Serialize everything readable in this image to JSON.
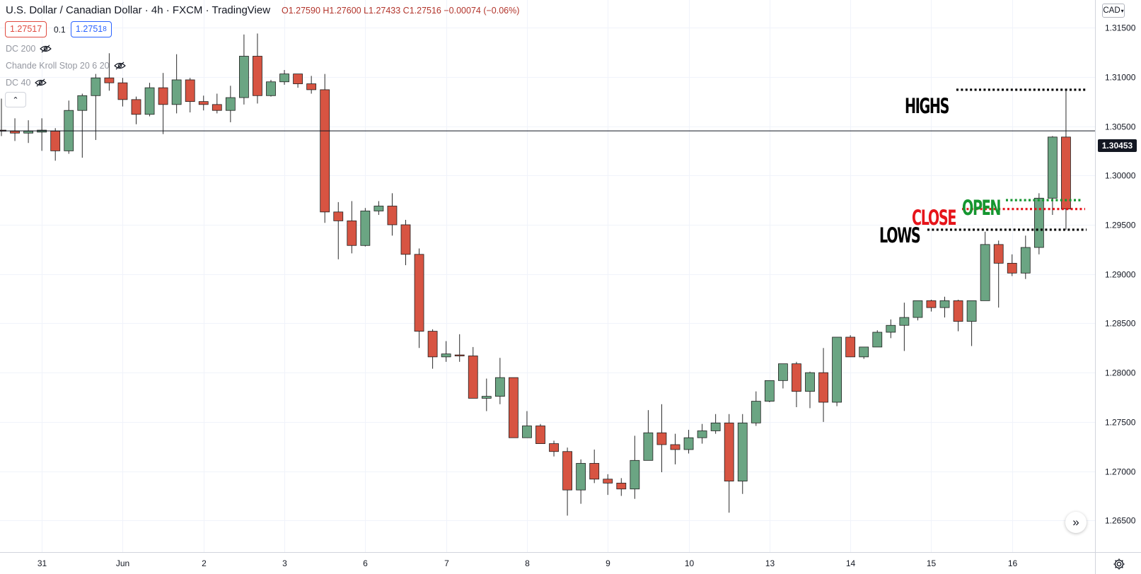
{
  "header": {
    "title": "U.S. Dollar / Canadian Dollar · 4h · FXCM · TradingView",
    "ohlc": "O1.27590 H1.27600 L1.27433 C1.27516 −0.00074 (−0.06%)"
  },
  "quote": {
    "bid": "1.27517",
    "spread": "0.1",
    "ask": "1.2751",
    "ask_pip": "8"
  },
  "indicators": [
    {
      "label": "DC 200",
      "icon": "eye-off-icon"
    },
    {
      "label": "Chande Kroll Stop 20 6 20",
      "icon": "eye-off-icon"
    },
    {
      "label": "DC 40",
      "icon": "eye-off-icon"
    }
  ],
  "toolbar": {
    "collapse_icon": "chevron-up-icon",
    "currency": "CAD",
    "currency_icon": "chevron-down-icon",
    "scroll_icon": "double-chevron-right-icon",
    "settings_icon": "gear-icon"
  },
  "price_scale": {
    "current_price_label": "1.30453",
    "labels": [
      "1.31500",
      "1.31000",
      "1.30500",
      "1.30000",
      "1.29500",
      "1.29000",
      "1.28500",
      "1.28000",
      "1.27500",
      "1.27000",
      "1.26500"
    ]
  },
  "time_scale": {
    "labels": [
      "31",
      "Jun",
      "2",
      "3",
      "6",
      "7",
      "8",
      "9",
      "10",
      "13",
      "14",
      "15",
      "16"
    ]
  },
  "annotations": {
    "highs": "HIGHS",
    "open": "OPEN",
    "close": "CLOSE",
    "lows": "LOWS",
    "levels": {
      "highs": 1.3087,
      "open": 1.2975,
      "close": 1.2966,
      "lows": 1.2945
    }
  },
  "chart_data": {
    "type": "candlestick",
    "symbol": "USDCAD",
    "timeframe": "4h",
    "ylim": [
      1.2618,
      1.3178
    ],
    "current_price": 1.30453,
    "colors": {
      "up": "#6ba583",
      "down": "#d75442",
      "wick": "#2a2a2a",
      "open_line": "#159630",
      "close_line": "#e6141a",
      "hl_line": "#000000"
    },
    "candles": [
      [
        1.3046,
        1.3078,
        1.304,
        1.3045
      ],
      [
        1.3045,
        1.3058,
        1.3035,
        1.3043
      ],
      [
        1.3043,
        1.3056,
        1.3033,
        1.3045
      ],
      [
        1.3044,
        1.3058,
        1.3025,
        1.3046
      ],
      [
        1.3045,
        1.3048,
        1.3015,
        1.3025
      ],
      [
        1.3025,
        1.3076,
        1.3022,
        1.3066
      ],
      [
        1.3066,
        1.3083,
        1.3018,
        1.3081
      ],
      [
        1.3081,
        1.3103,
        1.3036,
        1.3099
      ],
      [
        1.3099,
        1.3124,
        1.3086,
        1.3094
      ],
      [
        1.3094,
        1.3099,
        1.307,
        1.3077
      ],
      [
        1.3077,
        1.308,
        1.3052,
        1.3062
      ],
      [
        1.3062,
        1.3094,
        1.306,
        1.3089
      ],
      [
        1.3089,
        1.3104,
        1.3042,
        1.3072
      ],
      [
        1.3072,
        1.3123,
        1.3063,
        1.3097
      ],
      [
        1.3097,
        1.3099,
        1.3064,
        1.3075
      ],
      [
        1.3075,
        1.3081,
        1.3066,
        1.3072
      ],
      [
        1.3072,
        1.3083,
        1.3063,
        1.3066
      ],
      [
        1.3066,
        1.3091,
        1.3054,
        1.3079
      ],
      [
        1.3079,
        1.3143,
        1.3072,
        1.3121
      ],
      [
        1.3121,
        1.3144,
        1.3073,
        1.3081
      ],
      [
        1.3081,
        1.3097,
        1.308,
        1.3095
      ],
      [
        1.3095,
        1.3107,
        1.3092,
        1.3103
      ],
      [
        1.3103,
        1.3103,
        1.3089,
        1.3093
      ],
      [
        1.3093,
        1.3101,
        1.3083,
        1.3087
      ],
      [
        1.3087,
        1.3103,
        1.2952,
        1.2963
      ],
      [
        1.2963,
        1.2973,
        1.2915,
        1.2954
      ],
      [
        1.2954,
        1.2974,
        1.2921,
        1.2929
      ],
      [
        1.2929,
        1.2967,
        1.2928,
        1.2964
      ],
      [
        1.2964,
        1.2974,
        1.296,
        1.2969
      ],
      [
        1.2969,
        1.2982,
        1.2939,
        1.295
      ],
      [
        1.295,
        1.2955,
        1.2909,
        1.292
      ],
      [
        1.292,
        1.2926,
        1.2825,
        1.2842
      ],
      [
        1.2842,
        1.2844,
        1.2804,
        1.2816
      ],
      [
        1.2816,
        1.2832,
        1.2811,
        1.2819
      ],
      [
        1.2818,
        1.2839,
        1.2811,
        1.2817
      ],
      [
        1.2817,
        1.2826,
        1.2774,
        1.2774
      ],
      [
        1.2774,
        1.2794,
        1.2761,
        1.2776
      ],
      [
        1.2776,
        1.2815,
        1.2768,
        1.2795
      ],
      [
        1.2795,
        1.2795,
        1.2734,
        1.2734
      ],
      [
        1.2734,
        1.2761,
        1.2734,
        1.2746
      ],
      [
        1.2746,
        1.2748,
        1.2728,
        1.2728
      ],
      [
        1.2728,
        1.2731,
        1.2715,
        1.272
      ],
      [
        1.272,
        1.2724,
        1.2655,
        1.2681
      ],
      [
        1.2681,
        1.2712,
        1.2667,
        1.2708
      ],
      [
        1.2708,
        1.2722,
        1.2688,
        1.2692
      ],
      [
        1.2692,
        1.2697,
        1.2676,
        1.2688
      ],
      [
        1.2688,
        1.2693,
        1.2675,
        1.2682
      ],
      [
        1.2682,
        1.2736,
        1.2672,
        1.2711
      ],
      [
        1.2711,
        1.2762,
        1.2711,
        1.2739
      ],
      [
        1.2739,
        1.2768,
        1.2699,
        1.2727
      ],
      [
        1.2727,
        1.2738,
        1.2707,
        1.2722
      ],
      [
        1.2722,
        1.2742,
        1.2718,
        1.2734
      ],
      [
        1.2734,
        1.2748,
        1.2728,
        1.2741
      ],
      [
        1.2741,
        1.2758,
        1.2738,
        1.2749
      ],
      [
        1.2749,
        1.2758,
        1.2658,
        1.269
      ],
      [
        1.269,
        1.2758,
        1.2677,
        1.2749
      ],
      [
        1.2749,
        1.2781,
        1.2746,
        1.2771
      ],
      [
        1.2771,
        1.2791,
        1.277,
        1.2792
      ],
      [
        1.2792,
        1.2808,
        1.2784,
        1.2809
      ],
      [
        1.2809,
        1.2811,
        1.2765,
        1.2781
      ],
      [
        1.2781,
        1.2801,
        1.2764,
        1.28
      ],
      [
        1.28,
        1.2825,
        1.275,
        1.277
      ],
      [
        1.277,
        1.2836,
        1.2766,
        1.2836
      ],
      [
        1.2836,
        1.2838,
        1.2818,
        1.2816
      ],
      [
        1.2816,
        1.2826,
        1.2814,
        1.2826
      ],
      [
        1.2826,
        1.2843,
        1.2826,
        1.2841
      ],
      [
        1.2841,
        1.2854,
        1.2835,
        1.2848
      ],
      [
        1.2848,
        1.2871,
        1.2822,
        1.2856
      ],
      [
        1.2856,
        1.2871,
        1.2853,
        1.2873
      ],
      [
        1.2873,
        1.2874,
        1.2862,
        1.2866
      ],
      [
        1.2866,
        1.2877,
        1.2856,
        1.2873
      ],
      [
        1.2873,
        1.2874,
        1.2842,
        1.2852
      ],
      [
        1.2852,
        1.2873,
        1.2827,
        1.2873
      ],
      [
        1.2873,
        1.2943,
        1.2873,
        1.293
      ],
      [
        1.293,
        1.2934,
        1.2866,
        1.2911
      ],
      [
        1.2911,
        1.292,
        1.2898,
        1.2901
      ],
      [
        1.2901,
        1.2939,
        1.2895,
        1.2927
      ],
      [
        1.2927,
        1.2982,
        1.292,
        1.2977
      ],
      [
        1.2977,
        1.304,
        1.296,
        1.3039
      ],
      [
        1.3039,
        1.3087,
        1.2945,
        1.2966
      ]
    ]
  }
}
